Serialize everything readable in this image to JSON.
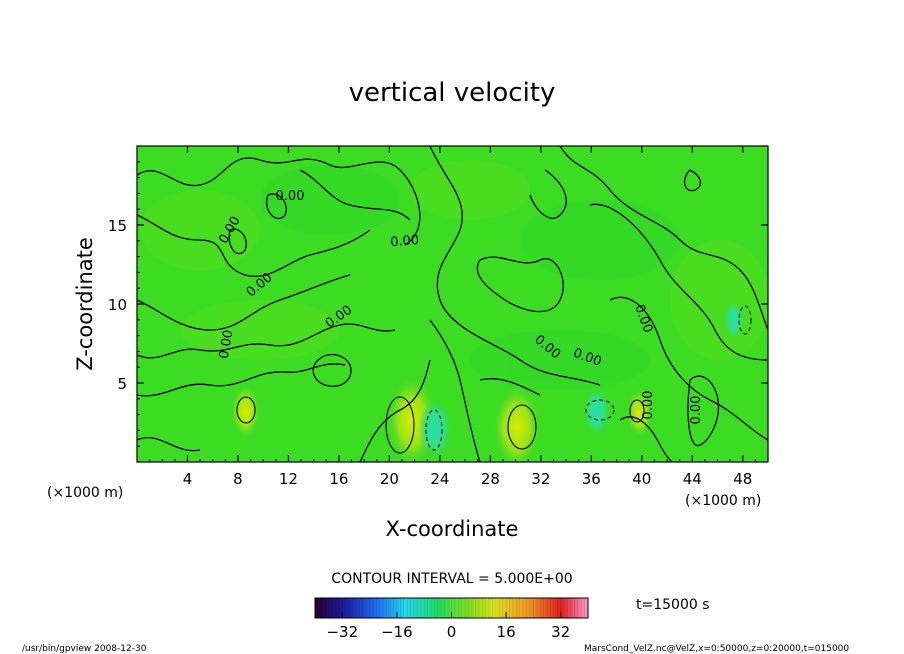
{
  "chart_data": {
    "type": "heatmap",
    "title": "vertical velocity",
    "xlabel": "X-coordinate",
    "ylabel": "Z-coordinate",
    "x_unit": "(×1000 m)",
    "y_unit": "(×1000 m)",
    "xlim": [
      0,
      50
    ],
    "ylim": [
      0,
      20
    ],
    "x_ticks": [
      4,
      8,
      12,
      16,
      20,
      24,
      28,
      32,
      36,
      40,
      44,
      48
    ],
    "y_ticks": [
      5,
      10,
      15
    ],
    "contour_interval_label": "CONTOUR INTERVAL = 5.000E+00",
    "contour_labels": [
      "0.00",
      "0.00",
      "0.00",
      "0.00",
      "0.00",
      "0.00",
      "0.00",
      "0.00",
      "0.00",
      "0.00",
      "0.00"
    ],
    "time_label": "t=15000 s",
    "colorbar": {
      "range": [
        -40,
        40
      ],
      "ticks": [
        -32,
        -16,
        0,
        16,
        32
      ]
    },
    "updraft_cores": [
      {
        "x": 8.6,
        "z": 3.2,
        "value": 10
      },
      {
        "x": 21.8,
        "z": 2.6,
        "value": 22
      },
      {
        "x": 30.1,
        "z": 2.2,
        "value": 20
      },
      {
        "x": 39.8,
        "z": 3.1,
        "value": 8
      }
    ],
    "downdraft_cores": [
      {
        "x": 23.6,
        "z": 2.1,
        "value": -14
      },
      {
        "x": 36.4,
        "z": 3.2,
        "value": -10
      },
      {
        "x": 47.3,
        "z": 9.0,
        "value": -6
      }
    ]
  },
  "footer": {
    "left": "/usr/bin/gpview   2008-12-30",
    "right": "MarsCond_VelZ.nc@VelZ,x=0:50000,z=0:20000,t=015000"
  },
  "colors": {
    "background_field": "#33dd22",
    "frame": "#000000"
  }
}
